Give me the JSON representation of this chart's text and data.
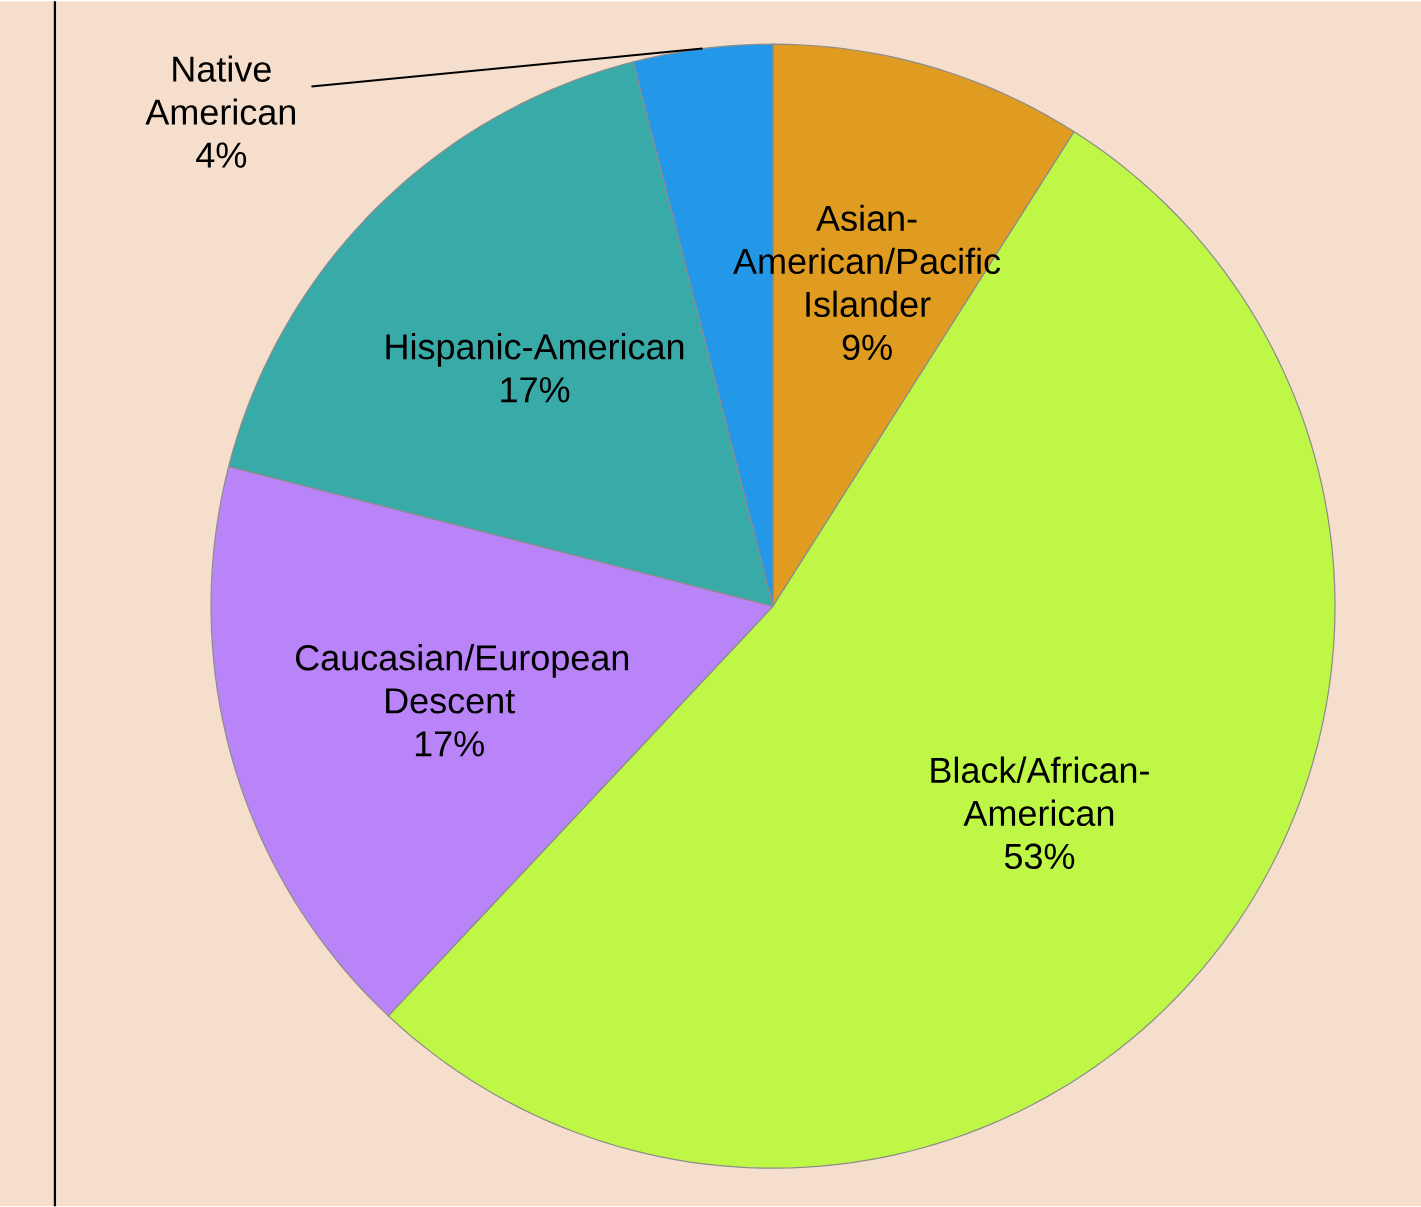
{
  "chart_data": {
    "type": "pie",
    "categories": [
      "Asian-American/Pacific Islander",
      "Black/African-American",
      "Caucasian/European Descent",
      "Hispanic-American",
      "Native American"
    ],
    "values": [
      9,
      53,
      17,
      17,
      4
    ],
    "value_labels": [
      "9%",
      "53%",
      "17%",
      "17%",
      "4%"
    ],
    "colors": [
      "#e09c20",
      "#bef745",
      "#b984f7",
      "#38aaa8",
      "#2498e8"
    ]
  }
}
